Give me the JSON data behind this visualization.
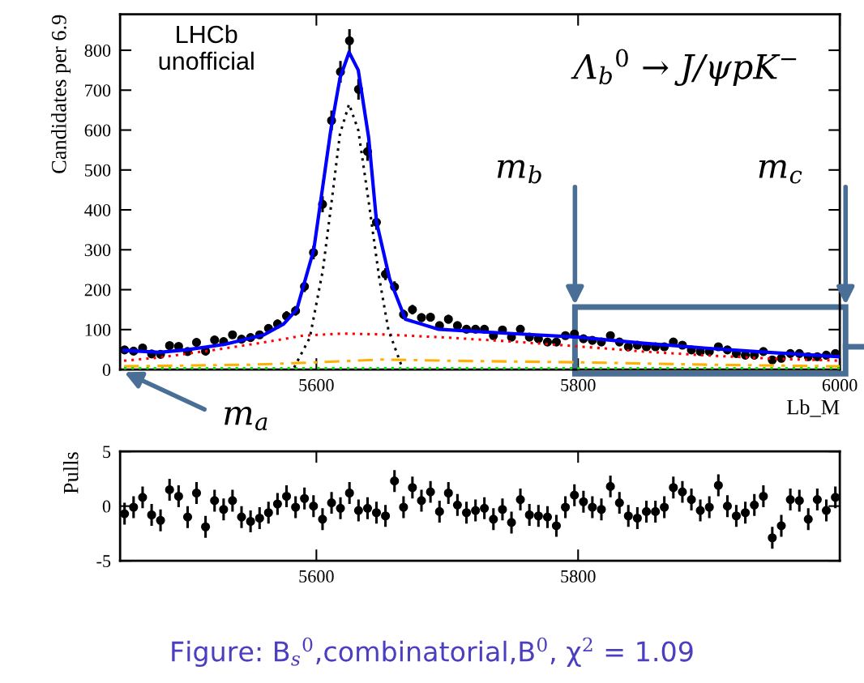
{
  "chart_data": [
    {
      "type": "scatter",
      "xlabel": "Lb_M",
      "ylabel": "Candidates per 6.9",
      "x": [
        5453.4,
        5460.3,
        5467.2,
        5474.1,
        5480.9,
        5487.8,
        5494.7,
        5501.6,
        5508.4,
        5515.3,
        5522.2,
        5529.1,
        5535.9,
        5542.8,
        5549.7,
        5556.6,
        5563.4,
        5570.3,
        5577.2,
        5584.1,
        5590.9,
        5597.8,
        5604.7,
        5611.6,
        5618.4,
        5625.3,
        5632.2,
        5639.1,
        5645.9,
        5652.8,
        5659.7,
        5666.6,
        5673.4,
        5680.3,
        5687.2,
        5694.1,
        5700.9,
        5707.8,
        5714.7,
        5721.6,
        5728.4,
        5735.3,
        5742.2,
        5749.1,
        5755.9,
        5762.8,
        5769.7,
        5776.6,
        5783.4,
        5790.3,
        5797.2,
        5804.1,
        5810.9,
        5817.8,
        5824.7,
        5831.6,
        5838.4,
        5845.3,
        5852.2,
        5859.1,
        5865.9,
        5872.8,
        5879.7,
        5886.6,
        5893.4,
        5900.3,
        5907.2,
        5914.1,
        5920.9,
        5927.8,
        5934.7,
        5941.6,
        5948.4,
        5955.3,
        5962.2,
        5969.1,
        5975.9,
        5982.8,
        5989.7,
        5996.6
      ],
      "series": [
        {
          "color": "#000000",
          "marker": "circle",
          "values": [
            49,
            46,
            54,
            39,
            38,
            60,
            58,
            45,
            68,
            46,
            74,
            70,
            87,
            76,
            80,
            87,
            103,
            114,
            134,
            147,
            208,
            293,
            414,
            624,
            746,
            824,
            702,
            546,
            369,
            239,
            207,
            138,
            150,
            130,
            131,
            110,
            126,
            110,
            101,
            101,
            101,
            85,
            99,
            81,
            101,
            81,
            77,
            69,
            69,
            85,
            89,
            77,
            73,
            69,
            85,
            69,
            57,
            61,
            57,
            57,
            57,
            69,
            61,
            49,
            45,
            45,
            57,
            49,
            40,
            36,
            36,
            45,
            24,
            28,
            40,
            40,
            32,
            32,
            36,
            40
          ],
          "errors": [
            7,
            7,
            7,
            6,
            6,
            8,
            8,
            7,
            8,
            7,
            9,
            8,
            9,
            9,
            9,
            9,
            10,
            11,
            12,
            12,
            14,
            17,
            20,
            25,
            27,
            29,
            26,
            23,
            19,
            15,
            14,
            12,
            12,
            11,
            11,
            10,
            11,
            10,
            10,
            10,
            10,
            9,
            10,
            9,
            10,
            9,
            9,
            8,
            8,
            9,
            9,
            9,
            9,
            8,
            9,
            8,
            8,
            8,
            8,
            8,
            8,
            8,
            8,
            7,
            7,
            7,
            8,
            7,
            6,
            6,
            6,
            7,
            5,
            5,
            6,
            6,
            6,
            6,
            6,
            6
          ]
        },
        {
          "type": "line",
          "color": "#ff0000",
          "line_style": "dotted",
          "x": [
            5453,
            5480,
            5520,
            5560,
            5590,
            5620,
            5650,
            5700,
            5750,
            5800,
            5850,
            5900,
            5950,
            6000
          ],
          "values": [
            22,
            30,
            48,
            68,
            85,
            90,
            88,
            80,
            70,
            58,
            45,
            35,
            27,
            22
          ]
        },
        {
          "type": "line",
          "color": "#ffb000",
          "line_style": "dashed",
          "x": [
            5453,
            5550,
            5600,
            5650,
            5700,
            5800,
            5900,
            6000
          ],
          "values": [
            8,
            12,
            18,
            25,
            22,
            18,
            12,
            8
          ]
        },
        {
          "type": "line",
          "color": "#00e000",
          "line_style": "dotted",
          "x": [
            5453,
            6000
          ],
          "values": [
            3,
            3
          ]
        },
        {
          "type": "line",
          "color": "#000000",
          "line_style": "dotted",
          "x": [
            5583,
            5595,
            5605,
            5612,
            5618,
            5625,
            5632,
            5640,
            5648,
            5655,
            5665
          ],
          "values": [
            5,
            80,
            250,
            430,
            590,
            665,
            600,
            420,
            230,
            100,
            10
          ]
        },
        {
          "type": "line",
          "color": "#0000ff",
          "line_style": "solid",
          "x": [
            5453,
            5480,
            5500,
            5530,
            5560,
            5575,
            5585,
            5598,
            5611,
            5618,
            5625,
            5632,
            5640,
            5646,
            5656,
            5668,
            5693,
            5750,
            5800,
            5850,
            5900,
            5950,
            6000
          ],
          "values": [
            48,
            43,
            49,
            63,
            87,
            114,
            150,
            300,
            600,
            730,
            795,
            750,
            580,
            369,
            227,
            126,
            101,
            90,
            81,
            66,
            53,
            42,
            32
          ]
        }
      ],
      "xlim": [
        5450,
        6000
      ],
      "xticks": [
        5600,
        5800,
        6000
      ],
      "ylim": [
        0,
        890
      ],
      "yticks": [
        0,
        100,
        200,
        300,
        400,
        500,
        600,
        700,
        800
      ],
      "grid": false,
      "legend": false,
      "annotations": [
        "LHCb\nunofficial",
        "Λ$_{b}$$^{0}$ → J/ψpK$^{−}$",
        "m$_{a}$",
        "m$_{b}$",
        "m$_{c}$"
      ]
    },
    {
      "type": "scatter",
      "ylabel": "Pulls",
      "x": [
        5453.4,
        5460.3,
        5467.2,
        5474.1,
        5480.9,
        5487.8,
        5494.7,
        5501.6,
        5508.4,
        5515.3,
        5522.2,
        5529.1,
        5535.9,
        5542.8,
        5549.7,
        5556.6,
        5563.4,
        5570.3,
        5577.2,
        5584.1,
        5590.9,
        5597.8,
        5604.7,
        5611.6,
        5618.4,
        5625.3,
        5632.2,
        5639.1,
        5645.9,
        5652.8,
        5659.7,
        5666.6,
        5673.4,
        5680.3,
        5687.2,
        5694.1,
        5700.9,
        5707.8,
        5714.7,
        5721.6,
        5728.4,
        5735.3,
        5742.2,
        5749.1,
        5755.9,
        5762.8,
        5769.7,
        5776.6,
        5783.4,
        5790.3,
        5797.2,
        5804.1,
        5810.9,
        5817.8,
        5824.7,
        5831.6,
        5838.4,
        5845.3,
        5852.2,
        5859.1,
        5865.9,
        5872.8,
        5879.7,
        5886.6,
        5893.4,
        5900.3,
        5907.2,
        5914.1,
        5920.9,
        5927.8,
        5934.7,
        5941.6,
        5948.4,
        5955.3,
        5962.2,
        5969.1,
        5975.9,
        5982.8,
        5989.7,
        5996.6
      ],
      "series": [
        {
          "color": "#000000",
          "values": [
            -0.7,
            -0.1,
            0.8,
            -0.8,
            -1.3,
            1.5,
            0.9,
            -1.0,
            1.2,
            -1.9,
            0.5,
            -0.3,
            0.5,
            -1.0,
            -1.4,
            -1.1,
            -0.6,
            0.2,
            0.9,
            -0.1,
            0.7,
            0.0,
            -1.2,
            0.3,
            -0.2,
            1.2,
            -0.4,
            -0.2,
            -0.6,
            -0.9,
            2.3,
            -0.1,
            1.7,
            0.5,
            1.3,
            -0.5,
            1.2,
            0.1,
            -0.6,
            -0.4,
            -0.2,
            -1.2,
            -0.3,
            -1.5,
            0.6,
            -0.8,
            -0.9,
            -1.0,
            -1.8,
            -0.1,
            1.0,
            0.4,
            -0.1,
            -0.3,
            1.8,
            0.3,
            -0.9,
            -1.1,
            -0.5,
            -0.5,
            -0.1,
            1.7,
            1.3,
            0.6,
            -0.4,
            -0.1,
            1.9,
            0.0,
            -0.9,
            -0.6,
            0.1,
            0.9,
            -2.9,
            -1.8,
            0.6,
            0.5,
            -1.2,
            0.6,
            -0.4,
            0.8
          ],
          "errors": [
            1,
            1,
            1,
            1,
            1,
            1,
            1,
            1,
            1,
            1,
            1,
            1,
            1,
            1,
            1,
            1,
            1,
            1,
            1,
            1,
            1,
            1,
            1,
            1,
            1,
            1,
            1,
            1,
            1,
            1,
            1,
            1,
            1,
            1,
            1,
            1,
            1,
            1,
            1,
            1,
            1,
            1,
            1,
            1,
            1,
            1,
            1,
            1,
            1,
            1,
            1,
            1,
            1,
            1,
            1,
            1,
            1,
            1,
            1,
            1,
            1,
            1,
            1,
            1,
            1,
            1,
            1,
            1,
            1,
            1,
            1,
            1,
            1,
            1,
            1,
            1,
            1,
            1,
            1,
            1
          ]
        }
      ],
      "xlim": [
        5450,
        6000
      ],
      "xticks": [
        5600,
        5800
      ],
      "ylim": [
        -5,
        5
      ],
      "yticks": [
        -5,
        0,
        5
      ],
      "marker": "circle",
      "grid": false,
      "legend": false,
      "annotations": [
        "Figure: B$_{s}$$^{0}$,combinatorial,B$^{0}$, χ$^{2}$ = 1.09"
      ]
    }
  ]
}
